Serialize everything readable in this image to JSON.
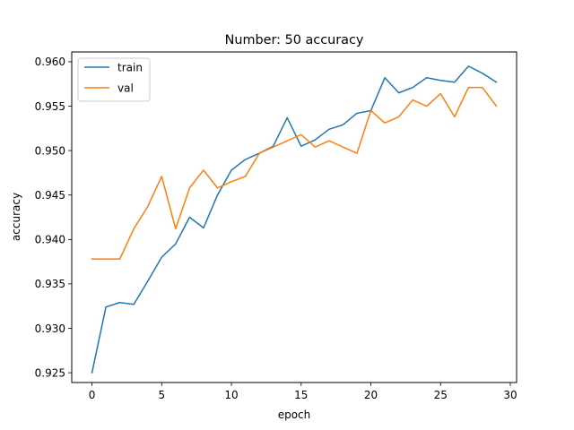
{
  "chart_data": {
    "type": "line",
    "title": "Number: 50 accuracy",
    "xlabel": "epoch",
    "ylabel": "accuracy",
    "xlim": [
      -1.45,
      30.45
    ],
    "ylim": [
      0.9239,
      0.9611
    ],
    "xticks": [
      0,
      5,
      10,
      15,
      20,
      25,
      30
    ],
    "yticks": [
      0.925,
      0.93,
      0.935,
      0.94,
      0.945,
      0.95,
      0.955,
      0.96
    ],
    "ytick_labels": [
      "0.925",
      "0.930",
      "0.935",
      "0.940",
      "0.945",
      "0.950",
      "0.955",
      "0.960"
    ],
    "grid": false,
    "legend": "upper-left",
    "series": [
      {
        "name": "train",
        "color": "#1f77b4",
        "x": [
          0,
          1,
          2,
          3,
          4,
          5,
          6,
          7,
          8,
          9,
          10,
          11,
          12,
          13,
          14,
          15,
          16,
          17,
          18,
          19,
          20,
          21,
          22,
          23,
          24,
          25,
          26,
          27,
          28,
          29
        ],
        "y": [
          0.925,
          0.9324,
          0.9329,
          0.9327,
          0.9353,
          0.938,
          0.9395,
          0.9425,
          0.9413,
          0.945,
          0.9478,
          0.949,
          0.9497,
          0.9505,
          0.9537,
          0.9505,
          0.9512,
          0.9524,
          0.9529,
          0.9542,
          0.9545,
          0.9582,
          0.9565,
          0.9571,
          0.9582,
          0.9579,
          0.9577,
          0.9595,
          0.9587,
          0.9577
        ]
      },
      {
        "name": "val",
        "color": "#ff7f0e",
        "x": [
          0,
          1,
          2,
          3,
          4,
          5,
          6,
          7,
          8,
          9,
          10,
          11,
          12,
          13,
          14,
          15,
          16,
          17,
          18,
          19,
          20,
          21,
          22,
          23,
          24,
          25,
          26,
          27,
          28,
          29
        ],
        "y": [
          0.9378,
          0.9378,
          0.9378,
          0.9412,
          0.9437,
          0.9471,
          0.9412,
          0.9458,
          0.9478,
          0.9458,
          0.9465,
          0.9471,
          0.9497,
          0.9504,
          0.9511,
          0.9518,
          0.9504,
          0.9511,
          0.9504,
          0.9497,
          0.9545,
          0.9531,
          0.9538,
          0.9557,
          0.955,
          0.9564,
          0.9538,
          0.9571,
          0.9571,
          0.955
        ]
      }
    ]
  }
}
